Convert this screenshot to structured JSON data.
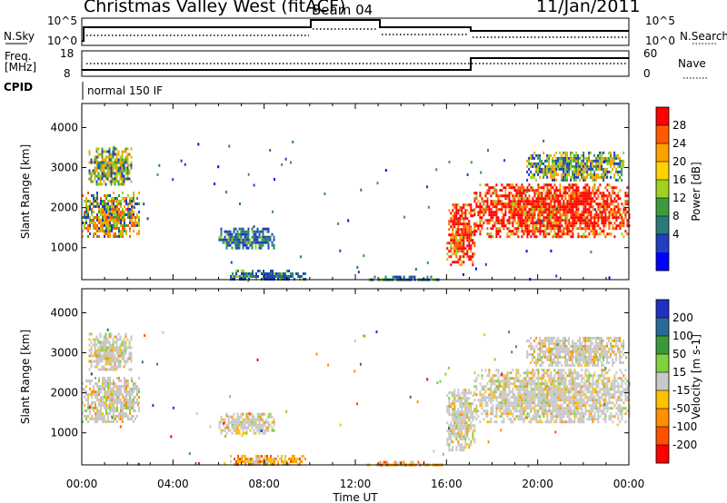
{
  "header": {
    "title": "Christmas Valley West (fitACF)",
    "beam": "Beam 04",
    "date": "11/Jan/2011"
  },
  "strips": {
    "nsky_label": "N.Sky",
    "nsky_ticks": [
      "10^5",
      "10^0"
    ],
    "nsearch_label": "N.Search",
    "nsearch_ticks": [
      "10^5",
      "10^0"
    ],
    "freq_label_line1": "Freq.",
    "freq_label_line2": "[MHz]",
    "freq_ticks": [
      "18",
      "8"
    ],
    "nave_label": "Nave",
    "nave_ticks": [
      "60",
      "0"
    ],
    "cpid_label": "CPID",
    "cpid_text": "normal 150 IF"
  },
  "x_axis": {
    "ticks": [
      "00:00",
      "04:00",
      "08:00",
      "12:00",
      "16:00",
      "20:00",
      "00:00"
    ],
    "label": "Time UT"
  },
  "colorbar_power": {
    "label": "Power [dB]",
    "ticks": [
      "28",
      "24",
      "20",
      "16",
      "12",
      "8",
      "4"
    ],
    "colors": [
      "#ff0000",
      "#ff5a00",
      "#ffa000",
      "#ffd200",
      "#a0d020",
      "#3c9c3c",
      "#2a7a7a",
      "#2040c0",
      "#0000ff"
    ]
  },
  "colorbar_velocity": {
    "label": "Velocity [m s-1]",
    "ticks": [
      "200",
      "100",
      "50",
      "15",
      "-15",
      "-50",
      "-100",
      "-200"
    ],
    "colors": [
      "#2030c0",
      "#2a6a9a",
      "#3a9a3a",
      "#80d040",
      "#c8c8c8",
      "#ffc000",
      "#ff9000",
      "#ff5000",
      "#ff0000"
    ]
  },
  "chart_data": [
    {
      "type": "heatmap",
      "title": "",
      "xlabel": "",
      "ylabel": "Slant Range [km]",
      "yticks": [
        "1000",
        "2000",
        "3000",
        "4000"
      ],
      "ylim": [
        200,
        4600
      ],
      "xlim": [
        0,
        24
      ],
      "colorbar": "Power [dB]",
      "regions": [
        {
          "t0": 0.0,
          "t1": 2.5,
          "r0": 1300,
          "r1": 2400,
          "level": "mixed-high"
        },
        {
          "t0": 0.3,
          "t1": 2.2,
          "r0": 2600,
          "r1": 3500,
          "level": "mixed"
        },
        {
          "t0": 6.0,
          "t1": 8.4,
          "r0": 1000,
          "r1": 1500,
          "level": "low"
        },
        {
          "t0": 6.5,
          "t1": 9.8,
          "r0": 200,
          "r1": 450,
          "level": "low"
        },
        {
          "t0": 12.5,
          "t1": 15.8,
          "r0": 200,
          "r1": 300,
          "level": "low"
        },
        {
          "t0": 16.0,
          "t1": 17.2,
          "r0": 600,
          "r1": 2100,
          "level": "high"
        },
        {
          "t0": 17.2,
          "t1": 24.0,
          "r0": 1300,
          "r1": 2600,
          "level": "high"
        },
        {
          "t0": 19.5,
          "t1": 23.8,
          "r0": 2700,
          "r1": 3400,
          "level": "mixed"
        }
      ]
    },
    {
      "type": "heatmap",
      "title": "",
      "xlabel": "Time UT",
      "ylabel": "Slant Range [km]",
      "yticks": [
        "1000",
        "2000",
        "3000",
        "4000"
      ],
      "ylim": [
        200,
        4600
      ],
      "xlim": [
        0,
        24
      ],
      "colorbar": "Velocity [m s-1]",
      "regions": [
        {
          "t0": 0.0,
          "t1": 2.5,
          "r0": 1300,
          "r1": 2400,
          "level": "gray"
        },
        {
          "t0": 0.3,
          "t1": 2.2,
          "r0": 2600,
          "r1": 3500,
          "level": "gray"
        },
        {
          "t0": 6.0,
          "t1": 8.4,
          "r0": 1000,
          "r1": 1500,
          "level": "gray"
        },
        {
          "t0": 6.5,
          "t1": 9.8,
          "r0": 200,
          "r1": 450,
          "level": "negative"
        },
        {
          "t0": 12.5,
          "t1": 15.8,
          "r0": 200,
          "r1": 300,
          "level": "negative"
        },
        {
          "t0": 16.0,
          "t1": 17.2,
          "r0": 600,
          "r1": 2100,
          "level": "gray"
        },
        {
          "t0": 17.2,
          "t1": 24.0,
          "r0": 1300,
          "r1": 2600,
          "level": "gray"
        },
        {
          "t0": 19.5,
          "t1": 23.8,
          "r0": 2700,
          "r1": 3400,
          "level": "gray"
        }
      ]
    }
  ]
}
